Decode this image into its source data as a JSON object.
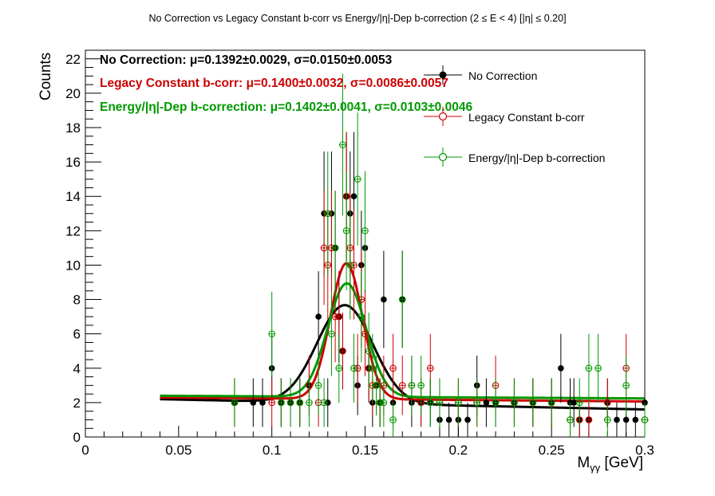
{
  "chart_data": {
    "type": "scatter",
    "title": "No Correction vs Legacy Constant b-corr vs Energy/|η|-Dep b-correction   (2 ≤ E < 4)   [|η| ≤ 0.20]",
    "xlabel_main": "M",
    "xlabel_sub": "γγ",
    "xlabel_unit": " [GeV]",
    "ylabel": "Counts",
    "xlim": [
      0,
      0.3
    ],
    "ylim": [
      0,
      22.5
    ],
    "x_ticks": [
      0,
      0.05,
      0.1,
      0.15,
      0.2,
      0.25,
      0.3
    ],
    "x_tick_labels": [
      "0",
      "0.05",
      "0.1",
      "0.15",
      "0.2",
      "0.25",
      "0.3"
    ],
    "y_ticks": [
      0,
      2,
      4,
      6,
      8,
      10,
      12,
      14,
      16,
      18,
      20,
      22
    ],
    "y_tick_labels": [
      "0",
      "2",
      "4",
      "6",
      "8",
      "10",
      "12",
      "14",
      "16",
      "18",
      "20",
      "22"
    ],
    "grid": false,
    "legend_position": "top-right",
    "stats": [
      {
        "label": "No Correction: ",
        "value": "μ=0.1392±0.0029, σ=0.0150±0.0053",
        "color": "#000000"
      },
      {
        "label": "Legacy Constant b-corr: ",
        "value": "μ=0.1400±0.0032, σ=0.0086±0.0057",
        "color": "#cc0000"
      },
      {
        "label": "Energy/|η|-Dep b-correction: ",
        "value": "μ=0.1402±0.0041, σ=0.0103±0.0046",
        "color": "#009900"
      }
    ],
    "series": [
      {
        "name": "No Correction",
        "color": "#000000",
        "marker": "filled-circle",
        "x": [
          0.08,
          0.09,
          0.095,
          0.1,
          0.105,
          0.11,
          0.115,
          0.12,
          0.125,
          0.128,
          0.13,
          0.132,
          0.134,
          0.136,
          0.138,
          0.14,
          0.142,
          0.144,
          0.146,
          0.148,
          0.15,
          0.152,
          0.154,
          0.156,
          0.158,
          0.16,
          0.165,
          0.17,
          0.175,
          0.18,
          0.185,
          0.19,
          0.195,
          0.2,
          0.205,
          0.21,
          0.215,
          0.22,
          0.23,
          0.24,
          0.25,
          0.255,
          0.26,
          0.262,
          0.265,
          0.27,
          0.28,
          0.285,
          0.29,
          0.295,
          0.3
        ],
        "y": [
          2,
          2,
          2,
          4,
          2,
          2,
          2,
          3,
          7,
          13,
          2,
          13,
          11,
          7,
          5,
          14,
          13,
          14,
          3,
          10,
          11,
          4,
          2,
          3,
          2,
          8,
          2,
          8,
          2,
          2,
          2,
          1,
          1,
          1,
          1,
          3,
          2,
          2,
          2,
          2,
          2,
          4,
          2,
          2,
          1,
          1,
          2,
          1,
          1,
          1,
          2
        ]
      },
      {
        "name": "Legacy Constant b-corr",
        "color": "#cc0000",
        "marker": "open-circle",
        "x": [
          0.08,
          0.1,
          0.105,
          0.11,
          0.115,
          0.12,
          0.125,
          0.128,
          0.13,
          0.132,
          0.134,
          0.136,
          0.138,
          0.14,
          0.142,
          0.144,
          0.146,
          0.148,
          0.15,
          0.152,
          0.154,
          0.156,
          0.158,
          0.16,
          0.165,
          0.17,
          0.175,
          0.18,
          0.185,
          0.19,
          0.2,
          0.21,
          0.22,
          0.23,
          0.24,
          0.25,
          0.26,
          0.265,
          0.27,
          0.28,
          0.29,
          0.3
        ],
        "y": [
          2,
          2,
          2,
          2,
          2,
          3,
          2,
          11,
          10,
          11,
          7,
          7,
          5,
          14,
          11,
          10,
          4,
          8,
          6,
          4,
          3,
          3,
          2,
          3,
          4,
          3,
          3,
          2,
          4,
          2,
          2,
          2,
          3,
          2,
          2,
          2,
          1,
          1,
          1,
          2,
          4,
          1
        ]
      },
      {
        "name": "Energy/|η|-Dep b-correction",
        "color": "#009900",
        "marker": "open-circle",
        "x": [
          0.08,
          0.1,
          0.105,
          0.11,
          0.115,
          0.12,
          0.125,
          0.128,
          0.13,
          0.132,
          0.134,
          0.136,
          0.138,
          0.14,
          0.142,
          0.144,
          0.146,
          0.148,
          0.15,
          0.152,
          0.154,
          0.156,
          0.158,
          0.16,
          0.165,
          0.17,
          0.175,
          0.18,
          0.185,
          0.19,
          0.2,
          0.21,
          0.22,
          0.23,
          0.24,
          0.25,
          0.26,
          0.265,
          0.27,
          0.275,
          0.28,
          0.29,
          0.3
        ],
        "y": [
          2,
          6,
          2,
          2,
          2,
          2,
          3,
          2,
          13,
          6,
          11,
          4,
          17,
          12,
          10,
          4,
          15,
          7,
          12,
          5,
          4,
          3,
          2,
          2,
          1,
          8,
          3,
          3,
          2,
          2,
          2,
          2,
          2,
          2,
          2,
          2,
          1,
          2,
          4,
          4,
          1,
          3,
          1
        ]
      }
    ],
    "fits": [
      {
        "name": "No Correction",
        "color": "#000000",
        "mean": 0.1392,
        "sigma": 0.015,
        "amp": 5.7,
        "bkg_a": 2.2,
        "bkg_b": -2.3
      },
      {
        "name": "Legacy Constant b-corr",
        "color": "#cc0000",
        "mean": 0.14,
        "sigma": 0.0086,
        "amp": 7.9,
        "bkg_a": 2.3,
        "bkg_b": -0.9
      },
      {
        "name": "Energy/|η|-Dep b-correction",
        "color": "#009900",
        "mean": 0.1402,
        "sigma": 0.0103,
        "amp": 6.6,
        "bkg_a": 2.4,
        "bkg_b": -0.6
      }
    ]
  }
}
